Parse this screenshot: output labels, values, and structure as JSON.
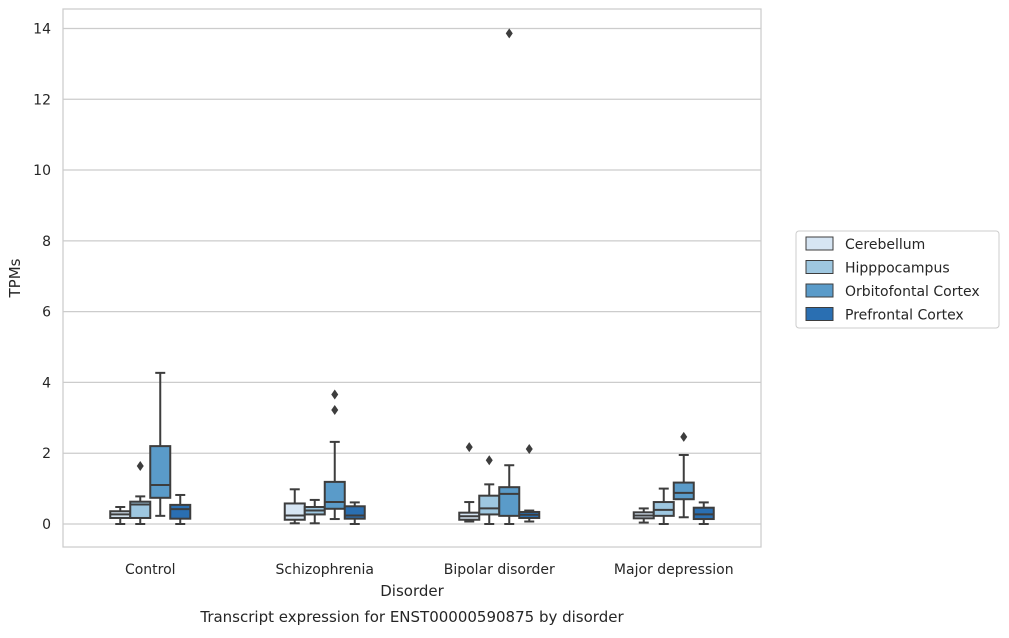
{
  "chart_data": {
    "type": "box",
    "title": "Transcript expression for ENST00000590875 by disorder",
    "xlabel": "Disorder",
    "ylabel": "TPMs",
    "ylim": [
      -0.65,
      14.55
    ],
    "yticks": [
      0,
      2,
      4,
      6,
      8,
      10,
      12,
      14
    ],
    "grid": "horizontal",
    "legend_position": "right",
    "categories": [
      "Control",
      "Schizophrenia",
      "Bipolar disorder",
      "Major depression"
    ],
    "series": [
      {
        "name": "Cerebellum",
        "color": "#d6e5f3",
        "boxes": [
          {
            "whislo": 0.0,
            "q1": 0.17,
            "med": 0.27,
            "q3": 0.36,
            "whishi": 0.48,
            "fliers": []
          },
          {
            "whislo": 0.02,
            "q1": 0.12,
            "med": 0.24,
            "q3": 0.58,
            "whishi": 0.98,
            "fliers": []
          },
          {
            "whislo": 0.07,
            "q1": 0.12,
            "med": 0.22,
            "q3": 0.32,
            "whishi": 0.62,
            "fliers": [
              2.17
            ]
          },
          {
            "whislo": 0.04,
            "q1": 0.16,
            "med": 0.24,
            "q3": 0.33,
            "whishi": 0.44,
            "fliers": []
          }
        ]
      },
      {
        "name": "Hipppocampus",
        "color": "#9ec7e0",
        "boxes": [
          {
            "whislo": 0.0,
            "q1": 0.17,
            "med": 0.55,
            "q3": 0.63,
            "whishi": 0.78,
            "fliers": [
              1.64
            ]
          },
          {
            "whislo": 0.02,
            "q1": 0.27,
            "med": 0.38,
            "q3": 0.48,
            "whishi": 0.68,
            "fliers": []
          },
          {
            "whislo": 0.0,
            "q1": 0.27,
            "med": 0.44,
            "q3": 0.8,
            "whishi": 1.12,
            "fliers": [
              1.8
            ]
          },
          {
            "whislo": 0.0,
            "q1": 0.23,
            "med": 0.4,
            "q3": 0.62,
            "whishi": 1.0,
            "fliers": []
          }
        ]
      },
      {
        "name": "Orbitofontal Cortex",
        "color": "#5a9bc9",
        "boxes": [
          {
            "whislo": 0.23,
            "q1": 0.74,
            "med": 1.1,
            "q3": 2.2,
            "whishi": 4.27,
            "fliers": []
          },
          {
            "whislo": 0.14,
            "q1": 0.43,
            "med": 0.62,
            "q3": 1.19,
            "whishi": 2.32,
            "fliers": [
              3.22,
              3.66
            ]
          },
          {
            "whislo": 0.0,
            "q1": 0.23,
            "med": 0.85,
            "q3": 1.04,
            "whishi": 1.66,
            "fliers": [
              13.86
            ]
          },
          {
            "whislo": 0.19,
            "q1": 0.7,
            "med": 0.88,
            "q3": 1.17,
            "whishi": 1.95,
            "fliers": [
              2.46
            ]
          }
        ]
      },
      {
        "name": "Prefrontal Cortex",
        "color": "#2a6fb2",
        "boxes": [
          {
            "whislo": 0.0,
            "q1": 0.15,
            "med": 0.42,
            "q3": 0.54,
            "whishi": 0.82,
            "fliers": []
          },
          {
            "whislo": 0.0,
            "q1": 0.15,
            "med": 0.24,
            "q3": 0.5,
            "whishi": 0.61,
            "fliers": []
          },
          {
            "whislo": 0.07,
            "q1": 0.17,
            "med": 0.26,
            "q3": 0.34,
            "whishi": 0.38,
            "fliers": [
              2.12
            ]
          },
          {
            "whislo": 0.0,
            "q1": 0.14,
            "med": 0.27,
            "q3": 0.46,
            "whishi": 0.61,
            "fliers": []
          }
        ]
      }
    ]
  }
}
